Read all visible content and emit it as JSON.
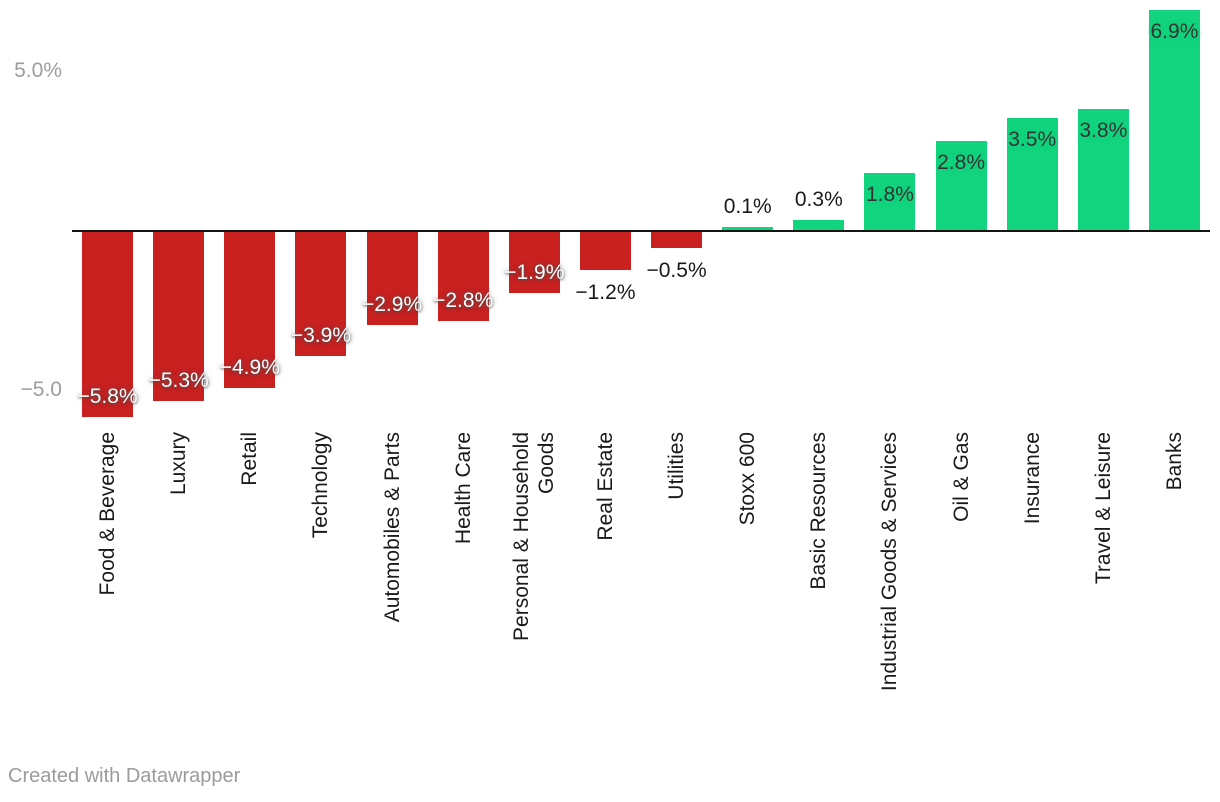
{
  "chart_data": {
    "type": "bar",
    "title": "",
    "xlabel": "",
    "ylabel": "",
    "unit": "%",
    "grid": false,
    "legend": "none",
    "ylim": [
      -6.3,
      7.2
    ],
    "yticks": [
      {
        "value": 5.0,
        "label": "5.0%"
      },
      {
        "value": -5.0,
        "label": "−5.0"
      }
    ],
    "categories": [
      "Food & Beverage",
      "Luxury",
      "Retail",
      "Technology",
      "Automobiles & Parts",
      "Health Care",
      "Personal & Household\nGoods",
      "Real Estate",
      "Utilities",
      "Stoxx 600",
      "Basic Resources",
      "Industrial Goods & Services",
      "Oil & Gas",
      "Insurance",
      "Travel & Leisure",
      "Banks"
    ],
    "values": [
      -5.8,
      -5.3,
      -4.9,
      -3.9,
      -2.9,
      -2.8,
      -1.9,
      -1.2,
      -0.5,
      0.1,
      0.3,
      1.8,
      2.8,
      3.5,
      3.8,
      6.9
    ],
    "labels": [
      "−5.8%",
      "−5.3%",
      "−4.9%",
      "−3.9%",
      "−2.9%",
      "−2.8%",
      "−1.9%",
      "−1.2%",
      "−0.5%",
      "0.1%",
      "0.3%",
      "1.8%",
      "2.8%",
      "3.5%",
      "3.8%",
      "6.9%"
    ],
    "label_positions": [
      "inside",
      "inside",
      "inside",
      "inside",
      "inside",
      "inside",
      "inside",
      "outside",
      "outside",
      "outside",
      "outside",
      "inside",
      "inside",
      "inside",
      "inside",
      "inside"
    ],
    "colors": {
      "positive": "#12d37e",
      "negative": "#c92020",
      "axis_line": "#141414",
      "tick_text": "#9d9d9d",
      "category_text": "#1a1a1a"
    }
  },
  "footer": {
    "attribution": "Created with Datawrapper"
  }
}
